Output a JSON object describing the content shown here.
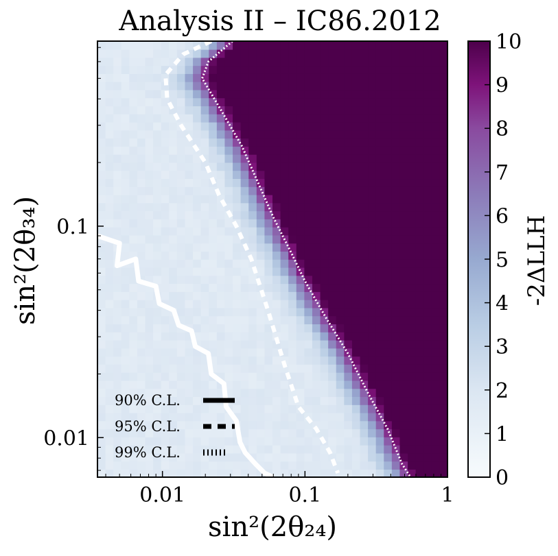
{
  "chart_data": {
    "type": "heatmap",
    "title": "Analysis II – IC86.2012",
    "xlabel": "sin²(2θ₂₄)",
    "ylabel": "sin²(2θ₃₄)",
    "xscale": "log",
    "yscale": "log",
    "xlim": [
      0.0035,
      1.0
    ],
    "ylim": [
      0.0065,
      0.75
    ],
    "xticks": [
      {
        "value": 0.01,
        "label": "0.01"
      },
      {
        "value": 0.1,
        "label": "0.1"
      },
      {
        "value": 1,
        "label": "1"
      }
    ],
    "yticks": [
      {
        "value": 0.01,
        "label": "0.01"
      },
      {
        "value": 0.1,
        "label": "0.1"
      }
    ],
    "colorbar": {
      "label": "-2ΔLLH",
      "min": 0,
      "max": 10,
      "ticks": [
        "0",
        "1",
        "2",
        "3",
        "4",
        "5",
        "6",
        "7",
        "8",
        "9",
        "10"
      ],
      "colors": [
        "#f7fbfd",
        "#bdd2e6",
        "#8c9fc9",
        "#8b5ba7",
        "#810f7c",
        "#4d004b"
      ]
    },
    "legend": {
      "position": "lower-left",
      "entries": [
        {
          "label": "90% C.L.",
          "style": "solid"
        },
        {
          "label": "95% C.L.",
          "style": "dashed"
        },
        {
          "label": "99% C.L.",
          "style": "dotted"
        }
      ]
    },
    "contours": [
      {
        "name": "90% C.L.",
        "style": "solid",
        "points": [
          [
            0.0035,
            0.09
          ],
          [
            0.005,
            0.083
          ],
          [
            0.0048,
            0.065
          ],
          [
            0.0065,
            0.07
          ],
          [
            0.0068,
            0.055
          ],
          [
            0.009,
            0.052
          ],
          [
            0.0095,
            0.043
          ],
          [
            0.012,
            0.04
          ],
          [
            0.013,
            0.034
          ],
          [
            0.016,
            0.032
          ],
          [
            0.017,
            0.027
          ],
          [
            0.021,
            0.025
          ],
          [
            0.022,
            0.02
          ],
          [
            0.027,
            0.018
          ],
          [
            0.028,
            0.014
          ],
          [
            0.033,
            0.012
          ],
          [
            0.035,
            0.0095
          ],
          [
            0.038,
            0.0085
          ],
          [
            0.045,
            0.0075
          ],
          [
            0.052,
            0.0068
          ],
          [
            0.06,
            0.0065
          ]
        ]
      },
      {
        "name": "95% C.L.",
        "style": "dashed",
        "points": [
          [
            0.022,
            0.75
          ],
          [
            0.014,
            0.65
          ],
          [
            0.0105,
            0.52
          ],
          [
            0.0108,
            0.4
          ],
          [
            0.0135,
            0.3
          ],
          [
            0.02,
            0.2
          ],
          [
            0.025,
            0.14
          ],
          [
            0.033,
            0.1
          ],
          [
            0.042,
            0.07
          ],
          [
            0.055,
            0.04
          ],
          [
            0.072,
            0.022
          ],
          [
            0.09,
            0.014
          ],
          [
            0.12,
            0.011
          ],
          [
            0.15,
            0.0085
          ],
          [
            0.17,
            0.0068
          ]
        ]
      },
      {
        "name": "99% C.L.",
        "style": "dotted",
        "points": [
          [
            0.031,
            0.75
          ],
          [
            0.021,
            0.6
          ],
          [
            0.019,
            0.5
          ],
          [
            0.026,
            0.35
          ],
          [
            0.036,
            0.24
          ],
          [
            0.047,
            0.16
          ],
          [
            0.06,
            0.11
          ],
          [
            0.08,
            0.075
          ],
          [
            0.1,
            0.055
          ],
          [
            0.14,
            0.037
          ],
          [
            0.2,
            0.025
          ],
          [
            0.28,
            0.016
          ],
          [
            0.38,
            0.011
          ],
          [
            0.48,
            0.0075
          ],
          [
            0.55,
            0.0065
          ]
        ]
      }
    ]
  }
}
